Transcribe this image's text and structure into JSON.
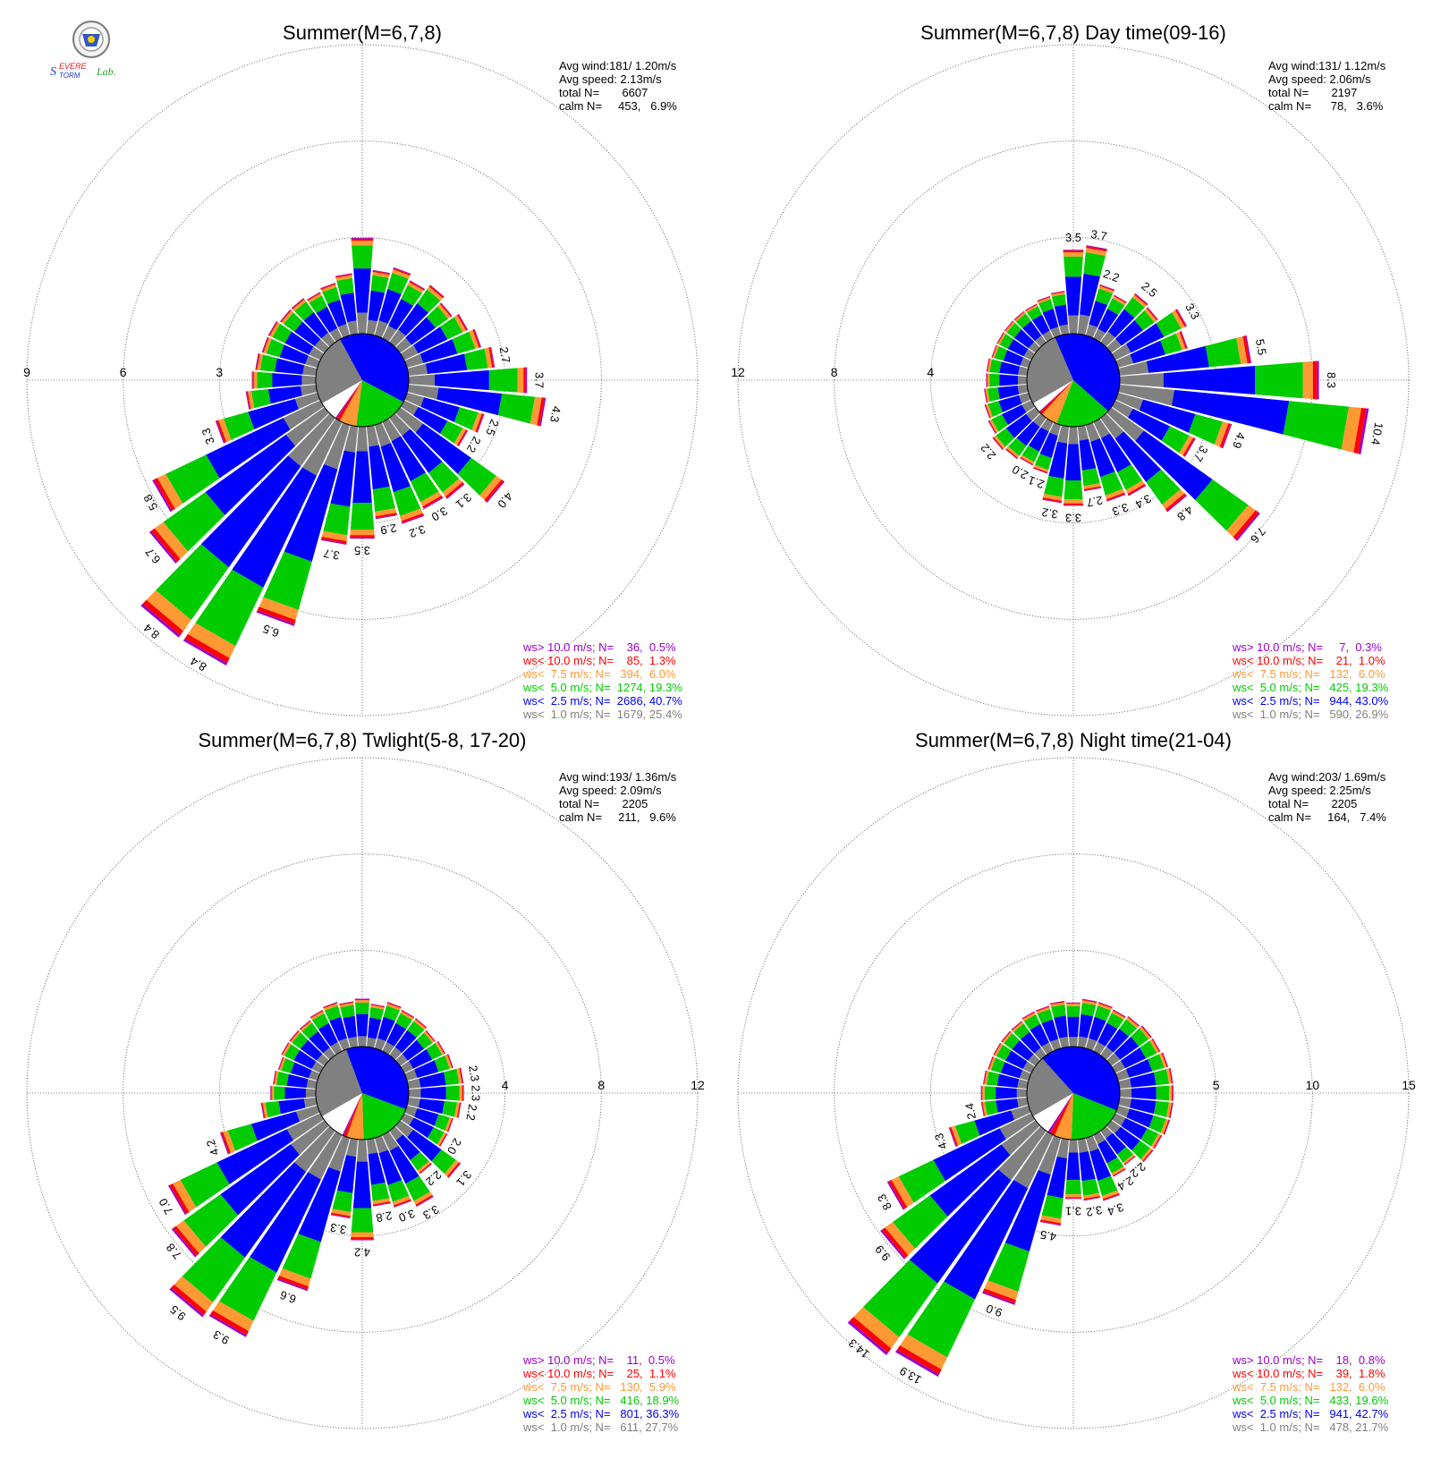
{
  "logo": {
    "text_part1": "Severe",
    "text_part2": "Storm",
    "text_part3": "Lab.",
    "colors": [
      "#1f3fd8",
      "#e02020",
      "#20a020"
    ]
  },
  "legend_colors": {
    "gt10": "#9900cc",
    "lt10": "#ff0000",
    "lt7_5": "#ff9933",
    "lt5": "#00cc00",
    "lt2_5": "#0000ff",
    "lt1": "#808080"
  },
  "chart_data": [
    {
      "type": "windrose",
      "title": "Summer(M=6,7,8)",
      "ring_labels": [
        "3",
        "6",
        "9"
      ],
      "ring_values": [
        3,
        6,
        9
      ],
      "ring_label_side": "left",
      "max_value": 10.5,
      "stats": {
        "avg_wind": "Avg wind:181/ 1.20m/s",
        "avg_speed": "Avg speed: 2.13m/s",
        "total": "total N=       6607",
        "calm": "calm N=     453,   6.9%"
      },
      "legend": [
        {
          "label": "ws> 10.0 m/s; N=    36,  0.5%",
          "key": "gt10"
        },
        {
          "label": "ws< 10.0 m/s; N=    85,  1.3%",
          "key": "lt10"
        },
        {
          "label": "ws<  7.5 m/s; N=   394,  6.0%",
          "key": "lt7_5"
        },
        {
          "label": "ws<  5.0 m/s; N=  1274, 19.3%",
          "key": "lt5"
        },
        {
          "label": "ws<  2.5 m/s; N=  2686, 40.7%",
          "key": "lt2_5"
        },
        {
          "label": "ws<  1.0 m/s; N=  1679, 25.4%",
          "key": "lt1"
        }
      ],
      "pie": [
        25.4,
        40.7,
        19.3,
        6.0,
        1.3,
        0.5
      ],
      "bars": [
        {
          "dir": 10,
          "total": 2.0
        },
        {
          "dir": 20,
          "total": 2.2
        },
        {
          "dir": 30,
          "total": 2.0
        },
        {
          "dir": 40,
          "total": 2.2
        },
        {
          "dir": 50,
          "total": 2.0
        },
        {
          "dir": 60,
          "total": 2.2
        },
        {
          "dir": 70,
          "total": 2.4
        },
        {
          "dir": 80,
          "total": 2.7,
          "label": "2.7"
        },
        {
          "dir": 90,
          "total": 3.7,
          "label": "3.7"
        },
        {
          "dir": 100,
          "total": 4.3,
          "label": "4.3"
        },
        {
          "dir": 110,
          "total": 2.5,
          "label": "2.5"
        },
        {
          "dir": 120,
          "total": 2.2,
          "label": "2.2"
        },
        {
          "dir": 130,
          "total": 4.0,
          "label": "4.0"
        },
        {
          "dir": 140,
          "total": 3.1,
          "label": "3.1"
        },
        {
          "dir": 150,
          "total": 3.0,
          "label": "3.0"
        },
        {
          "dir": 160,
          "total": 3.2,
          "label": "3.2"
        },
        {
          "dir": 170,
          "total": 2.9,
          "label": "2.9"
        },
        {
          "dir": 180,
          "total": 3.5,
          "label": "3.5"
        },
        {
          "dir": 190,
          "total": 3.7,
          "label": "3.7"
        },
        {
          "dir": 200,
          "total": 6.5,
          "label": "6.5"
        },
        {
          "dir": 210,
          "total": 8.4,
          "label": "8.4"
        },
        {
          "dir": 220,
          "total": 8.4,
          "label": "8.4"
        },
        {
          "dir": 230,
          "total": 6.7,
          "label": "6.7"
        },
        {
          "dir": 240,
          "total": 5.8,
          "label": "5.8"
        },
        {
          "dir": 250,
          "total": 3.3,
          "label": "3.3"
        },
        {
          "dir": 260,
          "total": 2.2
        },
        {
          "dir": 270,
          "total": 2.0
        },
        {
          "dir": 280,
          "total": 1.9
        },
        {
          "dir": 290,
          "total": 1.8
        },
        {
          "dir": 300,
          "total": 1.8
        },
        {
          "dir": 310,
          "total": 1.7
        },
        {
          "dir": 320,
          "total": 1.7
        },
        {
          "dir": 330,
          "total": 1.6
        },
        {
          "dir": 340,
          "total": 1.7
        },
        {
          "dir": 350,
          "total": 1.9
        },
        {
          "dir": 360,
          "total": 3.0
        }
      ]
    },
    {
      "type": "windrose",
      "title": "Summer(M=6,7,8) Day time(09-16)",
      "ring_labels": [
        "4",
        "8",
        "12"
      ],
      "ring_values": [
        4,
        8,
        12
      ],
      "ring_label_side": "left",
      "max_value": 14,
      "stats": {
        "avg_wind": "Avg wind:131/ 1.12m/s",
        "avg_speed": "Avg speed: 2.06m/s",
        "total": "total N=       2197",
        "calm": "calm N=      78,   3.6%"
      },
      "legend": [
        {
          "label": "ws> 10.0 m/s; N=     7,  0.3%",
          "key": "gt10"
        },
        {
          "label": "ws< 10.0 m/s; N=    21,  1.0%",
          "key": "lt10"
        },
        {
          "label": "ws<  7.5 m/s; N=   132,  6.0%",
          "key": "lt7_5"
        },
        {
          "label": "ws<  5.0 m/s; N=   425, 19.3%",
          "key": "lt5"
        },
        {
          "label": "ws<  2.5 m/s; N=   944, 43.0%",
          "key": "lt2_5"
        },
        {
          "label": "ws<  1.0 m/s; N=   590, 26.9%",
          "key": "lt1"
        }
      ],
      "pie": [
        26.9,
        43.0,
        19.3,
        6.0,
        1.0,
        0.3
      ],
      "bars": [
        {
          "dir": 10,
          "total": 3.7,
          "label": "3.7"
        },
        {
          "dir": 20,
          "total": 2.2,
          "label": "2.2"
        },
        {
          "dir": 30,
          "total": 2.0
        },
        {
          "dir": 40,
          "total": 2.5,
          "label": "2.5"
        },
        {
          "dir": 50,
          "total": 2.4
        },
        {
          "dir": 60,
          "total": 3.3,
          "label": "3.3"
        },
        {
          "dir": 70,
          "total": 3.0
        },
        {
          "dir": 80,
          "total": 5.5,
          "label": "5.5"
        },
        {
          "dir": 90,
          "total": 8.3,
          "label": "8.3"
        },
        {
          "dir": 100,
          "total": 10.4,
          "label": "10.4"
        },
        {
          "dir": 110,
          "total": 4.9,
          "label": "4.9"
        },
        {
          "dir": 120,
          "total": 3.7,
          "label": "3.7"
        },
        {
          "dir": 130,
          "total": 7.6,
          "label": "7.6"
        },
        {
          "dir": 140,
          "total": 4.8,
          "label": "4.8"
        },
        {
          "dir": 150,
          "total": 3.4,
          "label": "3.4"
        },
        {
          "dir": 160,
          "total": 3.3,
          "label": "3.3"
        },
        {
          "dir": 170,
          "total": 2.7,
          "label": "2.7"
        },
        {
          "dir": 180,
          "total": 3.3,
          "label": "3.3"
        },
        {
          "dir": 190,
          "total": 3.2,
          "label": "3.2"
        },
        {
          "dir": 200,
          "total": 2.1,
          "label": "2.1"
        },
        {
          "dir": 210,
          "total": 2.0,
          "label": "2.0"
        },
        {
          "dir": 220,
          "total": 2.1
        },
        {
          "dir": 230,
          "total": 2.2,
          "label": "2.2"
        },
        {
          "dir": 240,
          "total": 2.0
        },
        {
          "dir": 250,
          "total": 1.9
        },
        {
          "dir": 260,
          "total": 1.8
        },
        {
          "dir": 270,
          "total": 1.7
        },
        {
          "dir": 280,
          "total": 1.7
        },
        {
          "dir": 290,
          "total": 1.6
        },
        {
          "dir": 300,
          "total": 1.6
        },
        {
          "dir": 310,
          "total": 1.6
        },
        {
          "dir": 320,
          "total": 1.6
        },
        {
          "dir": 330,
          "total": 1.6
        },
        {
          "dir": 340,
          "total": 1.7
        },
        {
          "dir": 350,
          "total": 1.8
        },
        {
          "dir": 360,
          "total": 3.5,
          "label": "3.5"
        }
      ]
    },
    {
      "type": "windrose",
      "title": "Summer(M=6,7,8) Twlight(5-8, 17-20)",
      "ring_labels": [
        "4",
        "8",
        "12"
      ],
      "ring_values": [
        4,
        8,
        12
      ],
      "ring_label_side": "right",
      "max_value": 14,
      "stats": {
        "avg_wind": "Avg wind:193/ 1.36m/s",
        "avg_speed": "Avg speed: 2.09m/s",
        "total": "total N=       2205",
        "calm": "calm N=     211,   9.6%"
      },
      "legend": [
        {
          "label": "ws> 10.0 m/s; N=    11,  0.5%",
          "key": "gt10"
        },
        {
          "label": "ws< 10.0 m/s; N=    25,  1.1%",
          "key": "lt10"
        },
        {
          "label": "ws<  7.5 m/s; N=   130,  5.9%",
          "key": "lt7_5"
        },
        {
          "label": "ws<  5.0 m/s; N=   416, 18.9%",
          "key": "lt5"
        },
        {
          "label": "ws<  2.5 m/s; N=   801, 36.3%",
          "key": "lt2_5"
        },
        {
          "label": "ws<  1.0 m/s; N=   611, 27.7%",
          "key": "lt1"
        }
      ],
      "pie": [
        27.7,
        36.3,
        18.9,
        5.9,
        1.1,
        0.5
      ],
      "bars": [
        {
          "dir": 10,
          "total": 1.8
        },
        {
          "dir": 20,
          "total": 2.0
        },
        {
          "dir": 30,
          "total": 1.9
        },
        {
          "dir": 40,
          "total": 1.9
        },
        {
          "dir": 50,
          "total": 1.8
        },
        {
          "dir": 60,
          "total": 1.9
        },
        {
          "dir": 70,
          "total": 2.0
        },
        {
          "dir": 80,
          "total": 2.3,
          "label": "2.3"
        },
        {
          "dir": 90,
          "total": 2.3,
          "label": "2.3"
        },
        {
          "dir": 100,
          "total": 2.2,
          "label": "2.2"
        },
        {
          "dir": 110,
          "total": 2.0
        },
        {
          "dir": 120,
          "total": 2.0,
          "label": "2.0"
        },
        {
          "dir": 130,
          "total": 3.1,
          "label": "3.1"
        },
        {
          "dir": 140,
          "total": 2.2,
          "label": "2.2"
        },
        {
          "dir": 150,
          "total": 3.3,
          "label": "3.3"
        },
        {
          "dir": 160,
          "total": 3.0,
          "label": "3.0"
        },
        {
          "dir": 170,
          "total": 2.8,
          "label": "2.8"
        },
        {
          "dir": 180,
          "total": 4.2,
          "label": "4.2"
        },
        {
          "dir": 190,
          "total": 3.3,
          "label": "3.3"
        },
        {
          "dir": 200,
          "total": 6.6,
          "label": "6.6"
        },
        {
          "dir": 210,
          "total": 9.3,
          "label": "9.3"
        },
        {
          "dir": 220,
          "total": 9.5,
          "label": "9.5"
        },
        {
          "dir": 230,
          "total": 7.8,
          "label": "7.8"
        },
        {
          "dir": 240,
          "total": 7.0,
          "label": "7.0"
        },
        {
          "dir": 250,
          "total": 4.2,
          "label": "4.2"
        },
        {
          "dir": 260,
          "total": 2.3
        },
        {
          "dir": 270,
          "total": 1.9
        },
        {
          "dir": 280,
          "total": 1.8
        },
        {
          "dir": 290,
          "total": 1.7
        },
        {
          "dir": 300,
          "total": 1.8
        },
        {
          "dir": 310,
          "total": 1.8
        },
        {
          "dir": 320,
          "total": 1.8
        },
        {
          "dir": 330,
          "total": 1.9
        },
        {
          "dir": 340,
          "total": 2.0
        },
        {
          "dir": 350,
          "total": 1.9
        },
        {
          "dir": 360,
          "total": 2.0
        }
      ]
    },
    {
      "type": "windrose",
      "title": "Summer(M=6,7,8) Night time(21-04)",
      "ring_labels": [
        "5",
        "10",
        "15"
      ],
      "ring_values": [
        5,
        10,
        15
      ],
      "ring_label_side": "right",
      "max_value": 17.5,
      "stats": {
        "avg_wind": "Avg wind:203/ 1.69m/s",
        "avg_speed": "Avg speed: 2.25m/s",
        "total": "total N=       2205",
        "calm": "calm N=     164,   7.4%"
      },
      "legend": [
        {
          "label": "ws> 10.0 m/s; N=    18,  0.8%",
          "key": "gt10"
        },
        {
          "label": "ws< 10.0 m/s; N=    39,  1.8%",
          "key": "lt10"
        },
        {
          "label": "ws<  7.5 m/s; N=   132,  6.0%",
          "key": "lt7_5"
        },
        {
          "label": "ws<  5.0 m/s; N=   433, 19.6%",
          "key": "lt5"
        },
        {
          "label": "ws<  2.5 m/s; N=   941, 42.7%",
          "key": "lt2_5"
        },
        {
          "label": "ws<  1.0 m/s; N=   478, 21.7%",
          "key": "lt1"
        }
      ],
      "pie": [
        21.7,
        42.7,
        19.6,
        6.0,
        1.8,
        0.8
      ],
      "bars": [
        {
          "dir": 10,
          "total": 2.5
        },
        {
          "dir": 20,
          "total": 2.5
        },
        {
          "dir": 30,
          "total": 2.4
        },
        {
          "dir": 40,
          "total": 2.5
        },
        {
          "dir": 50,
          "total": 2.6
        },
        {
          "dir": 60,
          "total": 2.6
        },
        {
          "dir": 70,
          "total": 2.7
        },
        {
          "dir": 80,
          "total": 2.8
        },
        {
          "dir": 90,
          "total": 2.8
        },
        {
          "dir": 100,
          "total": 2.8
        },
        {
          "dir": 110,
          "total": 2.8
        },
        {
          "dir": 120,
          "total": 2.7
        },
        {
          "dir": 130,
          "total": 2.7
        },
        {
          "dir": 140,
          "total": 2.2,
          "label": "2.2"
        },
        {
          "dir": 150,
          "total": 2.4,
          "label": "2.4"
        },
        {
          "dir": 160,
          "total": 3.4,
          "label": "3.4"
        },
        {
          "dir": 170,
          "total": 3.2,
          "label": "3.2"
        },
        {
          "dir": 180,
          "total": 3.1,
          "label": "3.1"
        },
        {
          "dir": 190,
          "total": 4.5,
          "label": "4.5"
        },
        {
          "dir": 200,
          "total": 9.0,
          "label": "9.0"
        },
        {
          "dir": 210,
          "total": 13.9,
          "label": "13.9"
        },
        {
          "dir": 220,
          "total": 14.3,
          "label": "14.3"
        },
        {
          "dir": 230,
          "total": 9.9,
          "label": "9.9"
        },
        {
          "dir": 240,
          "total": 8.3,
          "label": "8.3"
        },
        {
          "dir": 250,
          "total": 4.3,
          "label": "4.3"
        },
        {
          "dir": 260,
          "total": 2.4,
          "label": "2.4"
        },
        {
          "dir": 270,
          "total": 2.4
        },
        {
          "dir": 280,
          "total": 2.3
        },
        {
          "dir": 290,
          "total": 2.2
        },
        {
          "dir": 300,
          "total": 2.2
        },
        {
          "dir": 310,
          "total": 2.2
        },
        {
          "dir": 320,
          "total": 2.2
        },
        {
          "dir": 330,
          "total": 2.3
        },
        {
          "dir": 340,
          "total": 2.3
        },
        {
          "dir": 350,
          "total": 2.4
        },
        {
          "dir": 360,
          "total": 2.3
        }
      ]
    }
  ]
}
